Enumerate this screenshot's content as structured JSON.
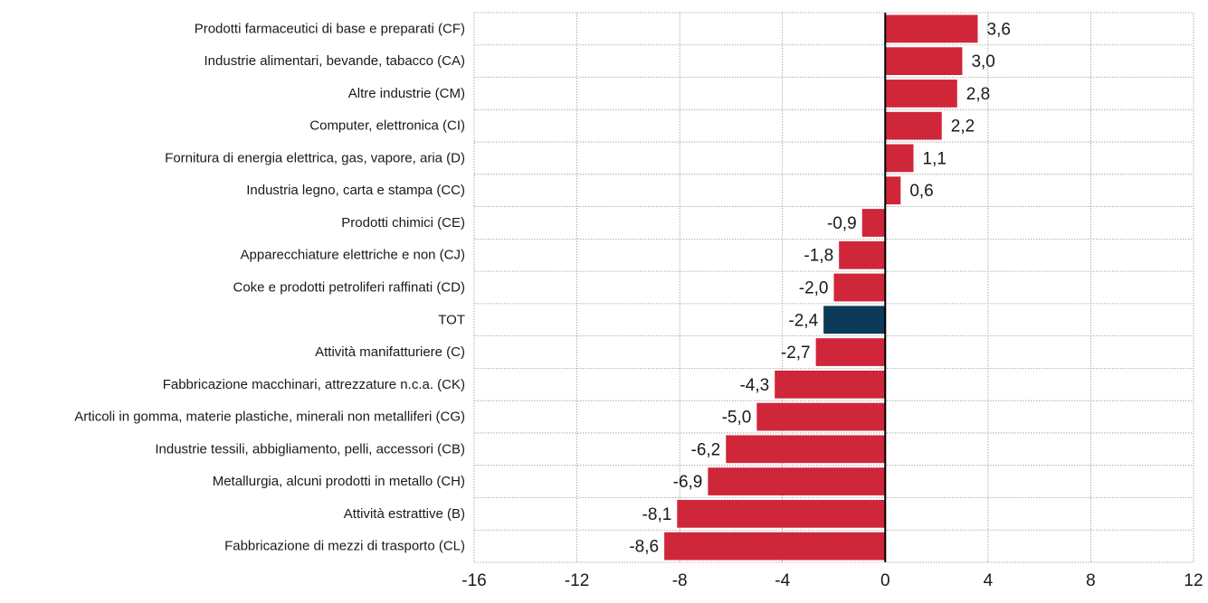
{
  "chart_data": {
    "type": "bar",
    "orientation": "horizontal",
    "categories": [
      "Prodotti farmaceutici di base e preparati (CF)",
      "Industrie alimentari, bevande, tabacco (CA)",
      "Altre industrie (CM)",
      "Computer, elettronica (CI)",
      "Fornitura di energia elettrica, gas, vapore, aria (D)",
      "Industria legno, carta e stampa (CC)",
      "Prodotti chimici (CE)",
      "Apparecchiature elettriche e non (CJ)",
      "Coke e prodotti petroliferi raffinati (CD)",
      "TOT",
      "Attività manifatturiere (C)",
      "Fabbricazione macchinari, attrezzature n.c.a. (CK)",
      "Articoli in gomma, materie plastiche, minerali non metalliferi (CG)",
      "Industrie tessili, abbigliamento, pelli, accessori (CB)",
      "Metallurgia, alcuni prodotti in metallo (CH)",
      "Attività estrattive (B)",
      "Fabbricazione di mezzi di trasporto (CL)"
    ],
    "values": [
      3.6,
      3.0,
      2.8,
      2.2,
      1.1,
      0.6,
      -0.9,
      -1.8,
      -2.0,
      -2.4,
      -2.7,
      -4.3,
      -5.0,
      -6.2,
      -6.9,
      -8.1,
      -8.6
    ],
    "value_labels": [
      "3,6",
      "3,0",
      "2,8",
      "2,2",
      "1,1",
      "0,6",
      "-0,9",
      "-1,8",
      "-2,0",
      "-2,4",
      "-2,7",
      "-4,3",
      "-5,0",
      "-6,2",
      "-6,9",
      "-8,1",
      "-8,6"
    ],
    "highlight_category": "TOT",
    "xlim": [
      -16,
      12
    ],
    "x_ticks": [
      -16,
      -12,
      -8,
      -4,
      0,
      4,
      8,
      12
    ],
    "x_tick_labels": [
      "-16",
      "-12",
      "-8",
      "-4",
      "0",
      "4",
      "8",
      "12"
    ],
    "grid": true,
    "title": "",
    "xlabel": "",
    "ylabel": "",
    "colors": {
      "bar": "#d0263a",
      "highlight": "#0d3a58",
      "zero_line": "#000000",
      "grid": "#9a9a9a"
    }
  }
}
